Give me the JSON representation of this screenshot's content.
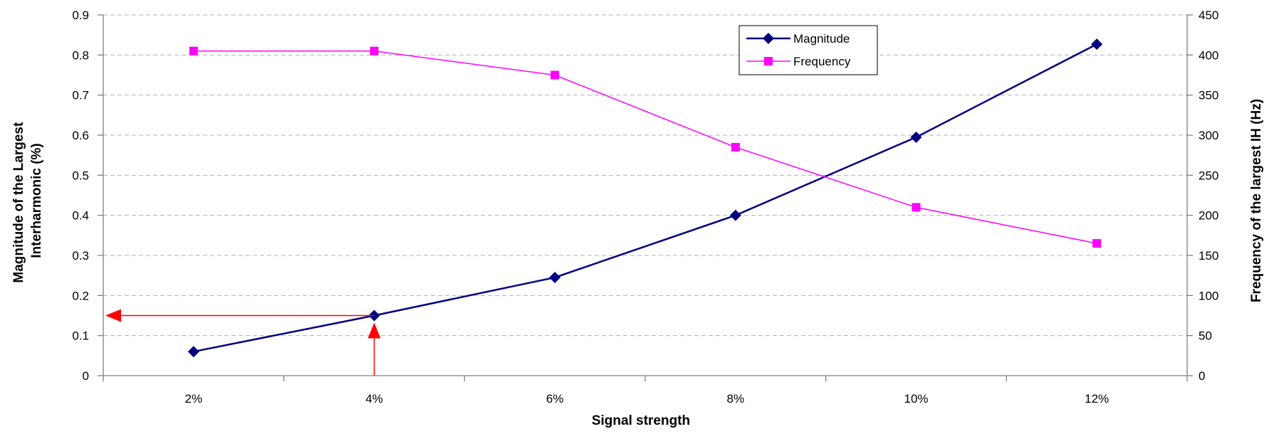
{
  "chart_data": {
    "type": "line",
    "xlabel": "Signal strength",
    "ylabel": "Magnitude of the Largest Interharmonic (%)",
    "ylabel_lines": [
      "Magnitude of the Largest",
      "Interharmonic (%)"
    ],
    "y2label": "Frequency of the largest IH (Hz)",
    "categories": [
      "2%",
      "4%",
      "6%",
      "8%",
      "10%",
      "12%"
    ],
    "ylim": [
      0,
      0.9
    ],
    "y_ticks": [
      "0",
      "0.1",
      "0.2",
      "0.3",
      "0.4",
      "0.5",
      "0.6",
      "0.7",
      "0.8",
      "0.9"
    ],
    "y2lim": [
      0,
      450
    ],
    "y2_ticks": [
      "0",
      "50",
      "100",
      "150",
      "200",
      "250",
      "300",
      "350",
      "400",
      "450"
    ],
    "grid": "horizontal dashed",
    "legend_position": "top-right",
    "series": [
      {
        "name": "Magnitude",
        "axis": "left",
        "marker": "diamond",
        "color": "#000080",
        "values": [
          0.06,
          0.15,
          0.245,
          0.4,
          0.595,
          0.827
        ]
      },
      {
        "name": "Frequency",
        "axis": "right",
        "marker": "square",
        "color": "#ff00ff",
        "values": [
          405,
          405,
          375,
          285,
          210,
          165
        ]
      }
    ],
    "annotations": {
      "color": "#ff0000",
      "arrows": [
        {
          "kind": "vertical",
          "x_category": "4%",
          "from_y": 0,
          "to_y": 0.15
        },
        {
          "kind": "horizontal",
          "y": 0.15,
          "from_x_category": "4%",
          "to": "left-axis"
        }
      ]
    }
  }
}
